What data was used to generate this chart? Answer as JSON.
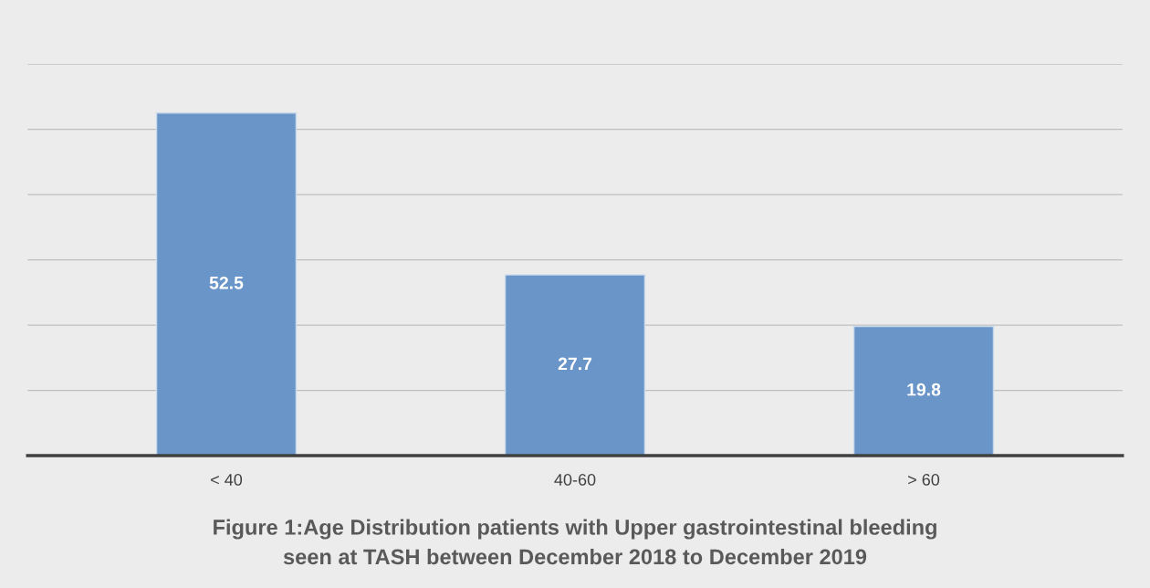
{
  "chart_data": {
    "type": "bar",
    "title": "Figure 1:Age Distribution patients with Upper gastrointestinal bleeding\nseen at TASH between December 2018 to December 2019",
    "categories": [
      "< 40",
      "40-60",
      "> 60"
    ],
    "values": [
      52.5,
      27.7,
      19.8
    ],
    "color": "#6a95c8",
    "ylim": [
      0,
      60
    ],
    "yticks": [
      {
        "value": 10,
        "label": null
      },
      {
        "value": 20,
        "label": null
      },
      {
        "value": 30,
        "label": null
      },
      {
        "value": 40,
        "label": null
      },
      {
        "value": 50,
        "label": null
      },
      {
        "value": 60,
        "label": null
      }
    ],
    "tick_labels": "x",
    "grid": "y",
    "data_labels": true
  }
}
